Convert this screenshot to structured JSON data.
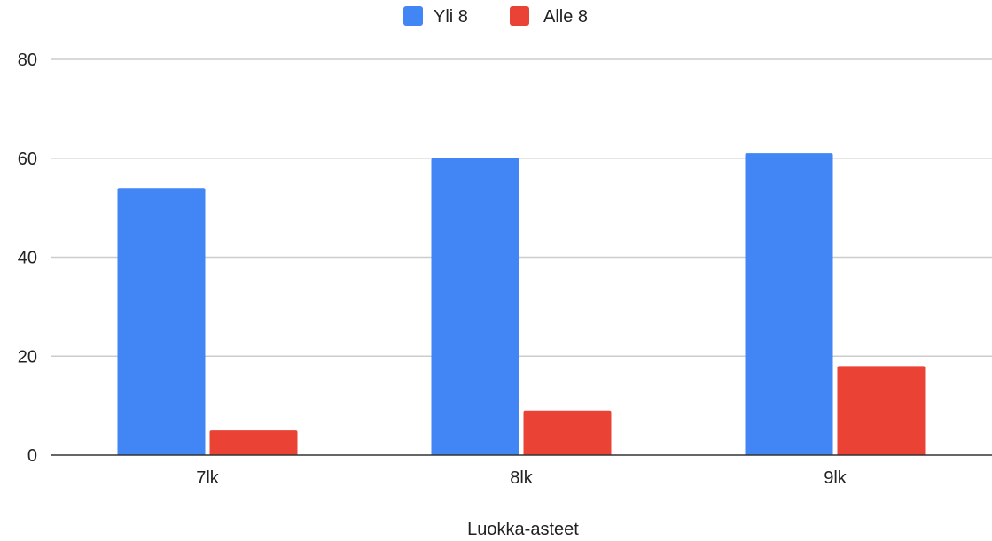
{
  "chart_data": {
    "type": "bar",
    "categories": [
      "7lk",
      "8lk",
      "9lk"
    ],
    "series": [
      {
        "name": "Yli 8",
        "values": [
          54,
          60,
          61
        ],
        "color": "#4285f4"
      },
      {
        "name": "Alle 8",
        "values": [
          5,
          9,
          18
        ],
        "color": "#ea4335"
      }
    ],
    "title": "",
    "xlabel": "Luokka-asteet",
    "ylabel": "",
    "ylim": [
      0,
      80
    ],
    "yticks": [
      0,
      20,
      40,
      60,
      80
    ],
    "grid": true,
    "legend_position": "top-center"
  }
}
